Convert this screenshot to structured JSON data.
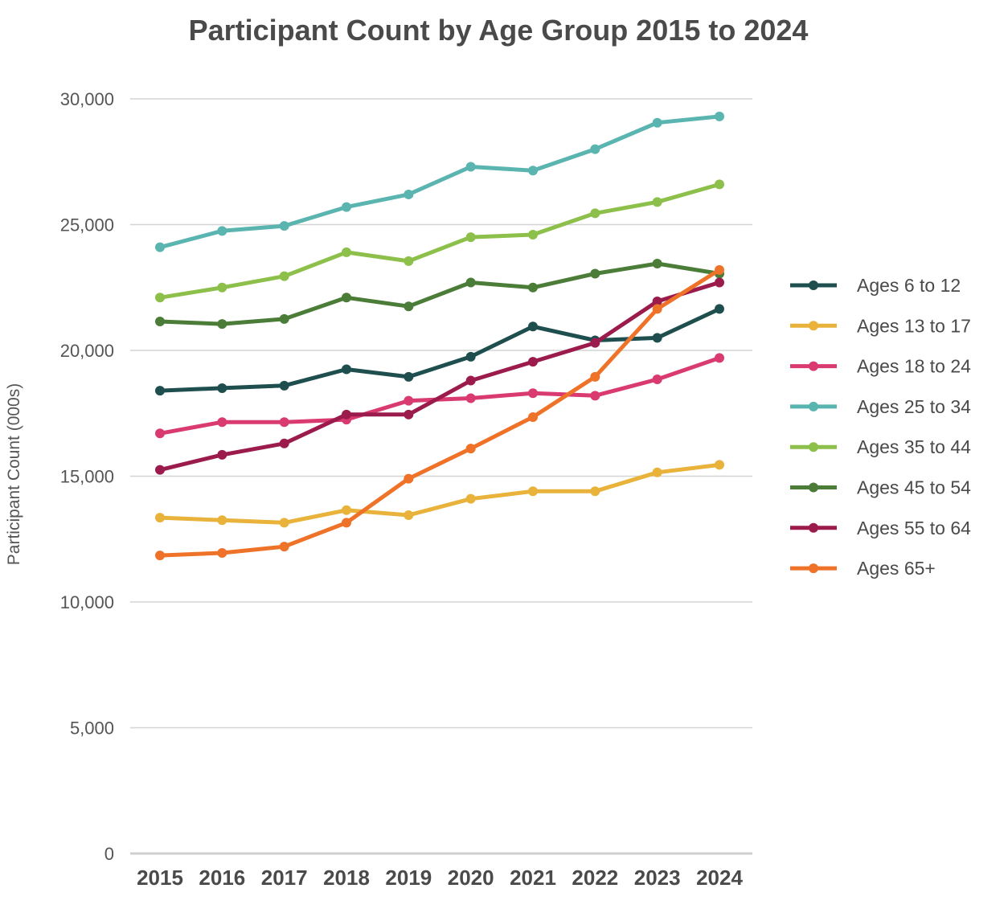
{
  "chart_data": {
    "type": "line",
    "title": "Participant Count by Age Group 2015 to 2024",
    "ylabel": "Participant Count (000s)",
    "xlabel": "",
    "categories": [
      "2015",
      "2016",
      "2017",
      "2018",
      "2019",
      "2020",
      "2021",
      "2022",
      "2023",
      "2024"
    ],
    "ylim": [
      0,
      30000
    ],
    "yticks": [
      0,
      5000,
      10000,
      15000,
      20000,
      25000,
      30000
    ],
    "ytick_labels": [
      "0",
      "5,000",
      "10,000",
      "15,000",
      "20,000",
      "25,000",
      "30,000"
    ],
    "grid": true,
    "legend_position": "right",
    "series": [
      {
        "name": "Ages 6 to 12",
        "color": "#1f4e4f",
        "values": [
          18400,
          18500,
          18600,
          19250,
          18950,
          19750,
          20950,
          20400,
          20500,
          21650
        ]
      },
      {
        "name": "Ages 13 to 17",
        "color": "#e8b23b",
        "values": [
          13350,
          13250,
          13150,
          13650,
          13450,
          14100,
          14400,
          14400,
          15150,
          15450
        ]
      },
      {
        "name": "Ages 18 to 24",
        "color": "#d93a70",
        "values": [
          16700,
          17150,
          17150,
          17250,
          18000,
          18100,
          18300,
          18200,
          18850,
          19700
        ]
      },
      {
        "name": "Ages 25 to 34",
        "color": "#5ab4b0",
        "values": [
          24100,
          24750,
          24950,
          25700,
          26200,
          27300,
          27150,
          28000,
          29050,
          29300
        ]
      },
      {
        "name": "Ages 35 to 44",
        "color": "#8dc04a",
        "values": [
          22100,
          22500,
          22950,
          23900,
          23550,
          24500,
          24600,
          25450,
          25900,
          26600
        ]
      },
      {
        "name": "Ages 45 to 54",
        "color": "#4b7d38",
        "values": [
          21150,
          21050,
          21250,
          22100,
          21750,
          22700,
          22500,
          23050,
          23450,
          23050
        ]
      },
      {
        "name": "Ages 55 to 64",
        "color": "#9b1c4c",
        "values": [
          15250,
          15850,
          16300,
          17450,
          17450,
          18800,
          19550,
          20300,
          21950,
          22700
        ]
      },
      {
        "name": "Ages 65+",
        "color": "#ef7229",
        "values": [
          11850,
          11950,
          12200,
          13150,
          14900,
          16100,
          17350,
          18950,
          21650,
          23200
        ]
      }
    ]
  }
}
